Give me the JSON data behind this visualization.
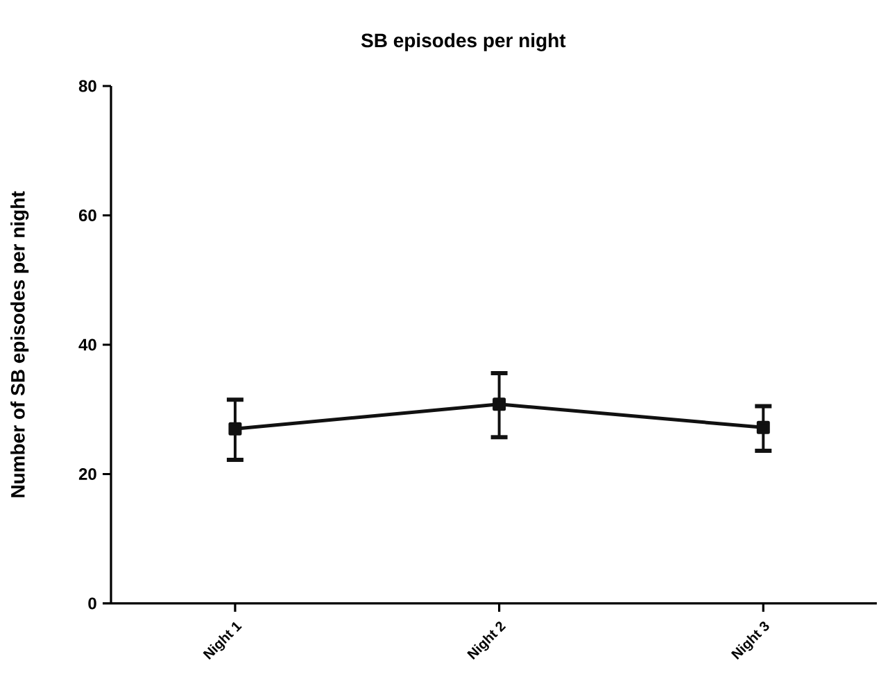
{
  "chart_data": {
    "type": "line",
    "title": "SB episodes per night",
    "ylabel": "Number of SB episodes per night",
    "categories": [
      "Night 1",
      "Night 2",
      "Night 3"
    ],
    "series": [
      {
        "color": "#111111",
        "values": [
          27.0,
          30.8,
          27.2
        ],
        "errors": [
          [
            22.2,
            31.5
          ],
          [
            25.7,
            35.6
          ],
          [
            23.6,
            30.5
          ]
        ]
      }
    ],
    "ylim": [
      0,
      80
    ],
    "yticks": [
      0,
      20,
      40,
      60,
      80
    ],
    "marker": "square",
    "line_style": "solid"
  }
}
